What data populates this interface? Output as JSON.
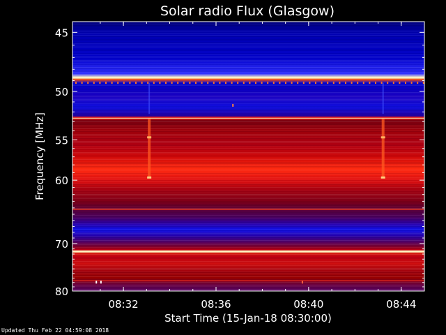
{
  "chart_data": {
    "type": "heatmap",
    "title": "Solar radio Flux (Glasgow)",
    "xlabel": "Start Time (15-Jan-18 08:30:00)",
    "ylabel": "Frequency [MHz]",
    "x_tick_labels": [
      "08:32",
      "08:36",
      "08:40",
      "08:44"
    ],
    "x_ticks_minutes": [
      2,
      6,
      10,
      14
    ],
    "xlim_minutes": [
      -0.2,
      15.0
    ],
    "y_tick_labels": [
      "45",
      "50",
      "55",
      "60",
      "70",
      "80"
    ],
    "y_ticks_mhz": [
      45,
      50,
      55,
      60,
      70,
      80
    ],
    "ylim_mhz": [
      44.2,
      80.0
    ],
    "y_scale": "reciprocal",
    "colormap": "blue-red-yellow-white",
    "colors": {
      "low": "#0000c8",
      "mid": "#9a0000",
      "high": "#ff2a10",
      "peak": "#fff4c0"
    },
    "bands_mhz": [
      {
        "from": 44.2,
        "to": 48.6,
        "level": "low"
      },
      {
        "from": 48.6,
        "to": 48.9,
        "level": "peak"
      },
      {
        "from": 48.9,
        "to": 52.5,
        "level": "low"
      },
      {
        "from": 52.5,
        "to": 52.8,
        "level": "high"
      },
      {
        "from": 52.8,
        "to": 64.0,
        "level": "mid-high"
      },
      {
        "from": 64.0,
        "to": 71.3,
        "level": "low-mid"
      },
      {
        "from": 71.3,
        "to": 71.7,
        "level": "peak"
      },
      {
        "from": 71.7,
        "to": 80.0,
        "level": "mid"
      }
    ],
    "bursts_minutes": [
      3.1,
      13.2
    ],
    "grid": false,
    "legend": "none"
  },
  "footer": "Updated Thu Feb 22 04:59:08 2018"
}
